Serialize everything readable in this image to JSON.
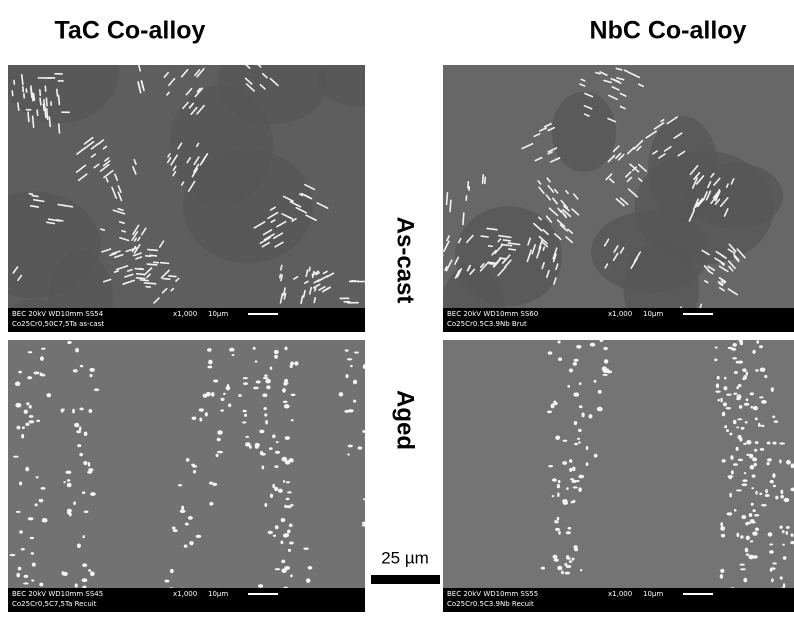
{
  "headers": {
    "left": "TaC Co-alloy",
    "right": "NbC Co-alloy"
  },
  "row_labels": {
    "top": "As-cast",
    "bottom": "Aged"
  },
  "scale_bar": "25 µm",
  "micrographs": [
    {
      "detector": "BEC 20kV  WD10mm SS54",
      "magnification": "x1,000",
      "scale": "10µm",
      "sample": "Co25Cr0,50C7,5Ta as-cast"
    },
    {
      "detector": "BEC 20kV  WD10mm SS60",
      "magnification": "x1,000",
      "scale": "10µm",
      "sample": "Co25Cr0.5C3.9Nb Brut"
    },
    {
      "detector": "BEC 20kV  WD10mm SS45",
      "magnification": "x1,000",
      "scale": "10µm",
      "sample": "Co25Cr0,5C7,5Ta Recuit"
    },
    {
      "detector": "BEC 20kV  WD10mm SS55",
      "magnification": "x1,000",
      "scale": "10µm",
      "sample": "Co25Cr0.5C3.9Nb Recuit"
    }
  ]
}
